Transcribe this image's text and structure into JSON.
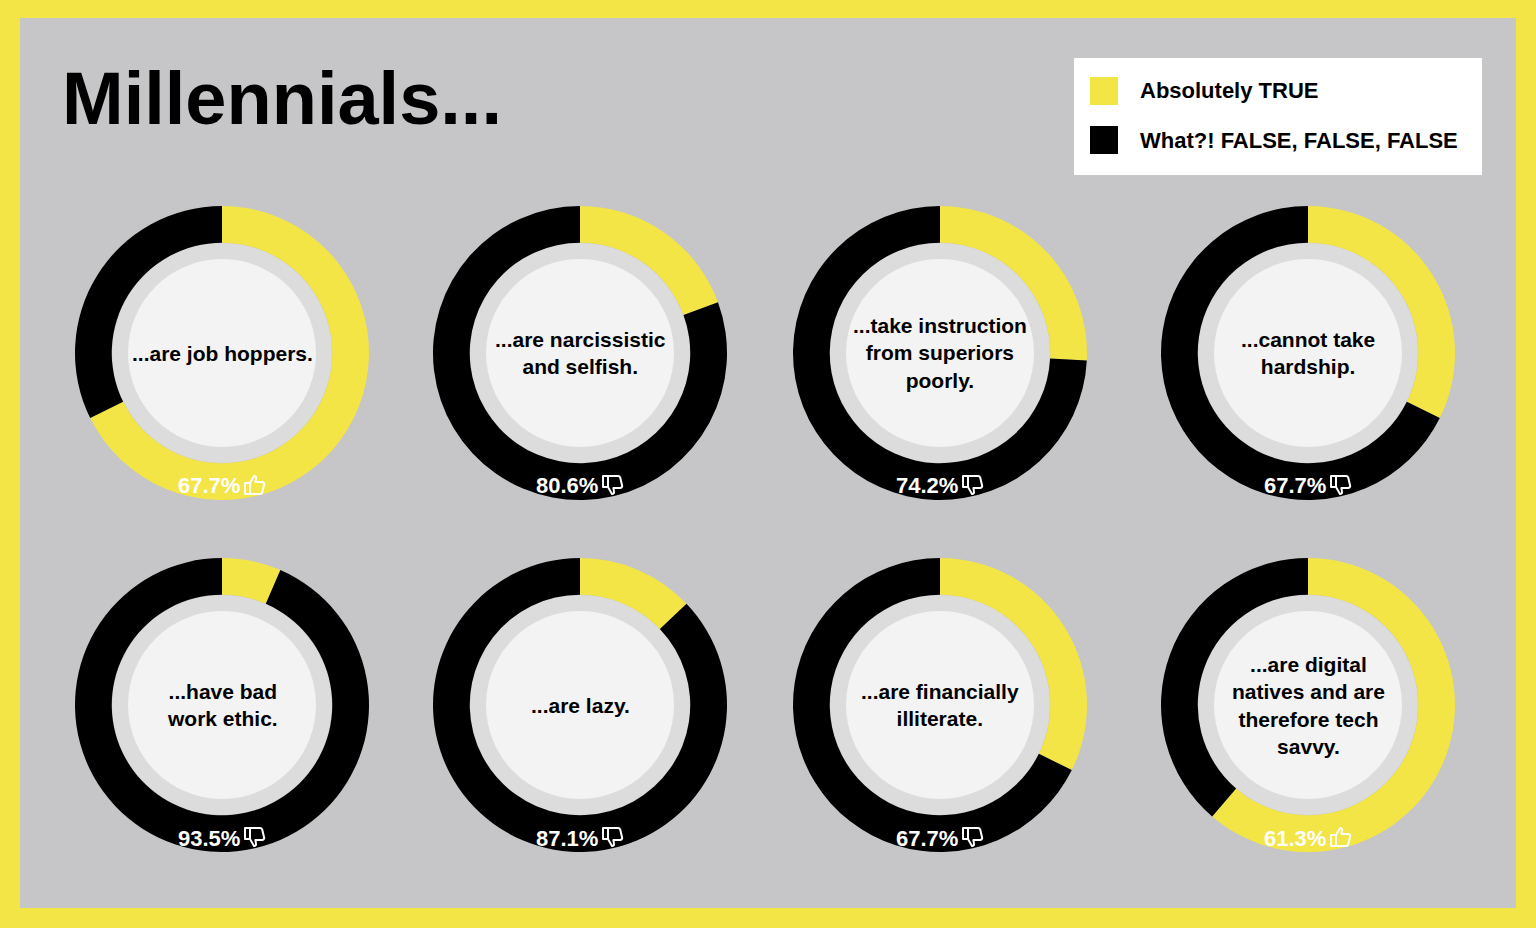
{
  "title": "Millennials...",
  "legend": "upper right",
  "chart_data": [
    {
      "type": "pie",
      "title": [
        "...are job hoppers."
      ],
      "categories": [
        "Absolutely TRUE",
        "What?! FALSE, FALSE, FALSE"
      ],
      "values": [
        67.7,
        32.3
      ],
      "value_labels": [
        "67.7%",
        null
      ],
      "colors": [
        "#f2e545",
        "#000000"
      ]
    },
    {
      "type": "pie",
      "title": [
        "...are narcissistic",
        "and selfish."
      ],
      "categories": [
        "Absolutely TRUE",
        "What?! FALSE, FALSE, FALSE"
      ],
      "values": [
        19.4,
        80.6
      ],
      "value_labels": [
        null,
        "80.6%"
      ],
      "colors": [
        "#f2e545",
        "#000000"
      ]
    },
    {
      "type": "pie",
      "title": [
        "...take instruction",
        "from superiors",
        "poorly."
      ],
      "categories": [
        "Absolutely TRUE",
        "What?! FALSE, FALSE, FALSE"
      ],
      "values": [
        25.8,
        74.2
      ],
      "value_labels": [
        null,
        "74.2%"
      ],
      "colors": [
        "#f2e545",
        "#000000"
      ]
    },
    {
      "type": "pie",
      "title": [
        "...cannot take",
        "hardship."
      ],
      "categories": [
        "Absolutely TRUE",
        "What?! FALSE, FALSE, FALSE"
      ],
      "values": [
        32.3,
        67.7
      ],
      "value_labels": [
        null,
        "67.7%"
      ],
      "colors": [
        "#f2e545",
        "#000000"
      ]
    },
    {
      "type": "pie",
      "title": [
        "...have bad",
        "work ethic."
      ],
      "categories": [
        "Absolutely TRUE",
        "What?! FALSE, FALSE, FALSE"
      ],
      "values": [
        6.5,
        93.5
      ],
      "value_labels": [
        null,
        "93.5%"
      ],
      "colors": [
        "#f2e545",
        "#000000"
      ]
    },
    {
      "type": "pie",
      "title": [
        "...are lazy."
      ],
      "categories": [
        "Absolutely TRUE",
        "What?! FALSE, FALSE, FALSE"
      ],
      "values": [
        12.9,
        87.1
      ],
      "value_labels": [
        null,
        "87.1%"
      ],
      "colors": [
        "#f2e545",
        "#000000"
      ]
    },
    {
      "type": "pie",
      "title": [
        "...are financially",
        "illiterate."
      ],
      "categories": [
        "Absolutely TRUE",
        "What?! FALSE, FALSE, FALSE"
      ],
      "values": [
        32.3,
        67.7
      ],
      "value_labels": [
        null,
        "67.7%"
      ],
      "colors": [
        "#f2e545",
        "#000000"
      ]
    },
    {
      "type": "pie",
      "title": [
        "...are digital",
        "natives and are",
        "therefore tech",
        "savvy."
      ],
      "categories": [
        "Absolutely TRUE",
        "What?! FALSE, FALSE, FALSE"
      ],
      "values": [
        61.3,
        38.7
      ],
      "value_labels": [
        "61.3%",
        null
      ],
      "colors": [
        "#f2e545",
        "#000000"
      ]
    }
  ]
}
